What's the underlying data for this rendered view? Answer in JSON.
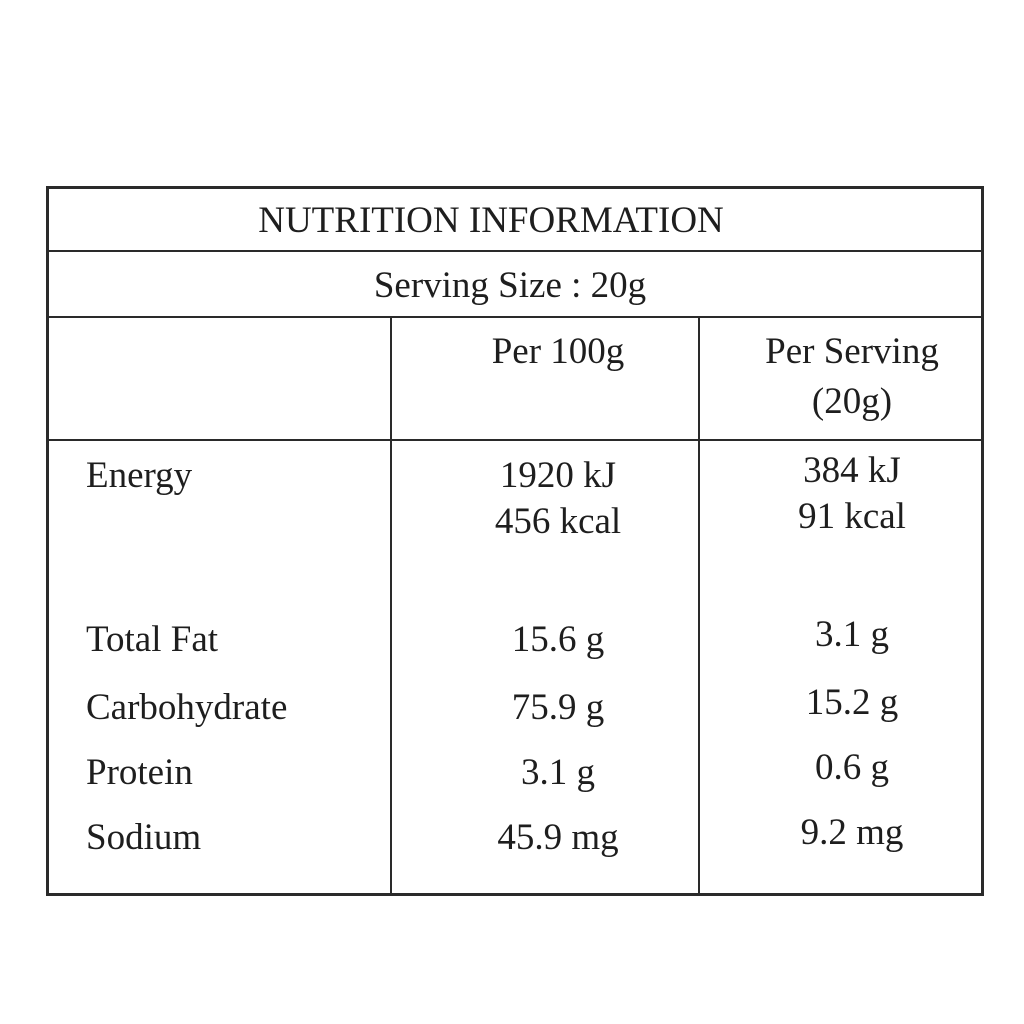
{
  "title": "NUTRITION INFORMATION",
  "serving_size": "Serving Size : 20g",
  "table": {
    "columns": [
      [
        "Per 100g"
      ],
      [
        "Per Serving",
        "(20g)"
      ]
    ],
    "rows": [
      {
        "label": "Energy",
        "values": [
          [
            "1920 kJ",
            "456 kcal"
          ],
          [
            "384 kJ",
            "91 kcal"
          ]
        ]
      },
      {
        "label": "Total Fat",
        "values": [
          [
            "15.6 g"
          ],
          [
            "3.1 g"
          ]
        ]
      },
      {
        "label": "Carbohydrate",
        "values": [
          [
            "75.9 g"
          ],
          [
            "15.2 g"
          ]
        ]
      },
      {
        "label": "Protein",
        "values": [
          [
            "3.1 g"
          ],
          [
            "0.6 g"
          ]
        ]
      },
      {
        "label": "Sodium",
        "values": [
          [
            "45.9 mg"
          ],
          [
            "9.2 mg"
          ]
        ]
      }
    ]
  }
}
